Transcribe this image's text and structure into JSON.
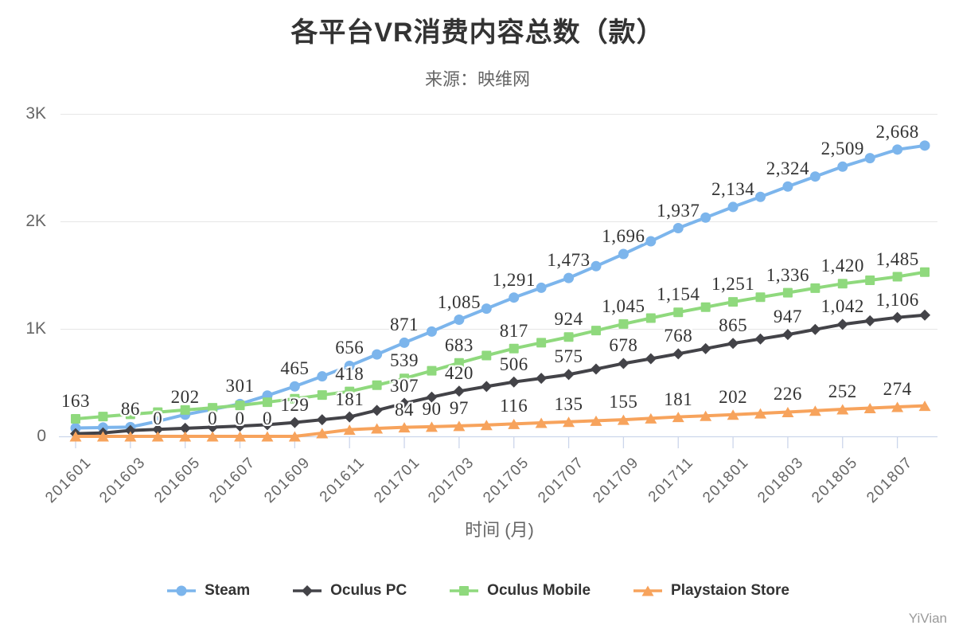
{
  "title": "各平台VR消费内容总数（款）",
  "subtitle": "来源：映维网",
  "watermark": "YiVian",
  "colors": {
    "axis_line": "#ccd6eb",
    "tick_mark": "#ccd6eb",
    "gridline": "#e6e6e6",
    "axis_text": "#666666",
    "data_label": "#333333",
    "title_text": "#333333",
    "legend_text": "#333333",
    "watermark_text": "#9a9a9a"
  },
  "chart_data": {
    "type": "line",
    "title": "各平台VR消费内容总数（款）",
    "subtitle": "来源：映维网",
    "xlabel": "时间 (月)",
    "ylabel": "",
    "ylim": [
      0,
      3000
    ],
    "grid": "horizontal",
    "legend_position": "bottom",
    "yticks": [
      {
        "value": 0,
        "label": "0"
      },
      {
        "value": 1000,
        "label": "1K"
      },
      {
        "value": 2000,
        "label": "2K"
      },
      {
        "value": 3000,
        "label": "3K"
      }
    ],
    "categories": [
      "201601",
      "201602",
      "201603",
      "201604",
      "201605",
      "201606",
      "201607",
      "201608",
      "201609",
      "201610",
      "201611",
      "201612",
      "201701",
      "201702",
      "201703",
      "201704",
      "201705",
      "201706",
      "201707",
      "201708",
      "201709",
      "201710",
      "201711",
      "201712",
      "201801",
      "201802",
      "201803",
      "201804",
      "201805",
      "201806",
      "201807",
      "201808"
    ],
    "xtick_labels": [
      "201601",
      "201603",
      "201605",
      "201607",
      "201609",
      "201611",
      "201701",
      "201703",
      "201705",
      "201707",
      "201709",
      "201711",
      "201801",
      "201803",
      "201805",
      "201807"
    ],
    "series": [
      {
        "name": "Steam",
        "color": "#7cb5ec",
        "marker": "circle",
        "values": [
          78,
          82,
          86,
          140,
          202,
          252,
          301,
          380,
          465,
          558,
          656,
          762,
          871,
          975,
          1085,
          1188,
          1291,
          1382,
          1473,
          1583,
          1696,
          1815,
          1937,
          2035,
          2134,
          2228,
          2324,
          2417,
          2509,
          2588,
          2668,
          2705
        ],
        "labels": [
          [
            "201603",
            "86"
          ],
          [
            "201605",
            "202"
          ],
          [
            "201607",
            "301"
          ],
          [
            "201609",
            "465"
          ],
          [
            "201611",
            "656"
          ],
          [
            "201701",
            "871"
          ],
          [
            "201703",
            "1,085"
          ],
          [
            "201705",
            "1,291"
          ],
          [
            "201707",
            "1,473"
          ],
          [
            "201709",
            "1,696"
          ],
          [
            "201711",
            "1,937"
          ],
          [
            "201801",
            "2,134"
          ],
          [
            "201803",
            "2,324"
          ],
          [
            "201805",
            "2,509"
          ],
          [
            "201807",
            "2,668"
          ]
        ]
      },
      {
        "name": "Oculus PC",
        "color": "#434348",
        "marker": "diamond",
        "values": [
          25,
          32,
          55,
          65,
          75,
          85,
          95,
          108,
          129,
          155,
          181,
          242,
          307,
          365,
          420,
          464,
          506,
          540,
          575,
          626,
          678,
          722,
          768,
          816,
          865,
          906,
          947,
          994,
          1042,
          1075,
          1106,
          1128
        ],
        "labels": [
          [
            "201609",
            "129"
          ],
          [
            "201611",
            "181"
          ],
          [
            "201701",
            "307"
          ],
          [
            "201703",
            "420"
          ],
          [
            "201705",
            "506"
          ],
          [
            "201707",
            "575"
          ],
          [
            "201709",
            "678"
          ],
          [
            "201711",
            "768"
          ],
          [
            "201801",
            "865"
          ],
          [
            "201803",
            "947"
          ],
          [
            "201805",
            "1,042"
          ],
          [
            "201807",
            "1,106"
          ]
        ]
      },
      {
        "name": "Oculus Mobile",
        "color": "#8fd97d",
        "marker": "square",
        "values": [
          163,
          184,
          205,
          225,
          245,
          266,
          288,
          318,
          350,
          384,
          418,
          476,
          539,
          610,
          683,
          752,
          817,
          871,
          924,
          984,
          1045,
          1100,
          1154,
          1202,
          1251,
          1294,
          1336,
          1379,
          1420,
          1452,
          1485,
          1528
        ],
        "labels": [
          [
            "201601",
            "163"
          ],
          [
            "201611",
            "418"
          ],
          [
            "201701",
            "539"
          ],
          [
            "201703",
            "683"
          ],
          [
            "201705",
            "817"
          ],
          [
            "201707",
            "924"
          ],
          [
            "201709",
            "1,045"
          ],
          [
            "201711",
            "1,154"
          ],
          [
            "201801",
            "1,251"
          ],
          [
            "201803",
            "1,336"
          ],
          [
            "201805",
            "1,420"
          ],
          [
            "201807",
            "1,485"
          ]
        ]
      },
      {
        "name": "Playstaion Store",
        "color": "#f7a35c",
        "marker": "triangle",
        "values": [
          0,
          0,
          0,
          0,
          0,
          0,
          0,
          0,
          0,
          30,
          62,
          74,
          84,
          90,
          97,
          106,
          116,
          126,
          135,
          145,
          155,
          168,
          181,
          191,
          202,
          214,
          226,
          239,
          252,
          263,
          274,
          284
        ],
        "labels": [
          [
            "201604",
            "0"
          ],
          [
            "201606",
            "0"
          ],
          [
            "201607",
            "0"
          ],
          [
            "201608",
            "0"
          ],
          [
            "201701",
            "84"
          ],
          [
            "201702",
            "90"
          ],
          [
            "201703",
            "97"
          ],
          [
            "201705",
            "116"
          ],
          [
            "201707",
            "135"
          ],
          [
            "201709",
            "155"
          ],
          [
            "201711",
            "181"
          ],
          [
            "201801",
            "202"
          ],
          [
            "201803",
            "226"
          ],
          [
            "201805",
            "252"
          ],
          [
            "201807",
            "274"
          ]
        ]
      }
    ]
  }
}
